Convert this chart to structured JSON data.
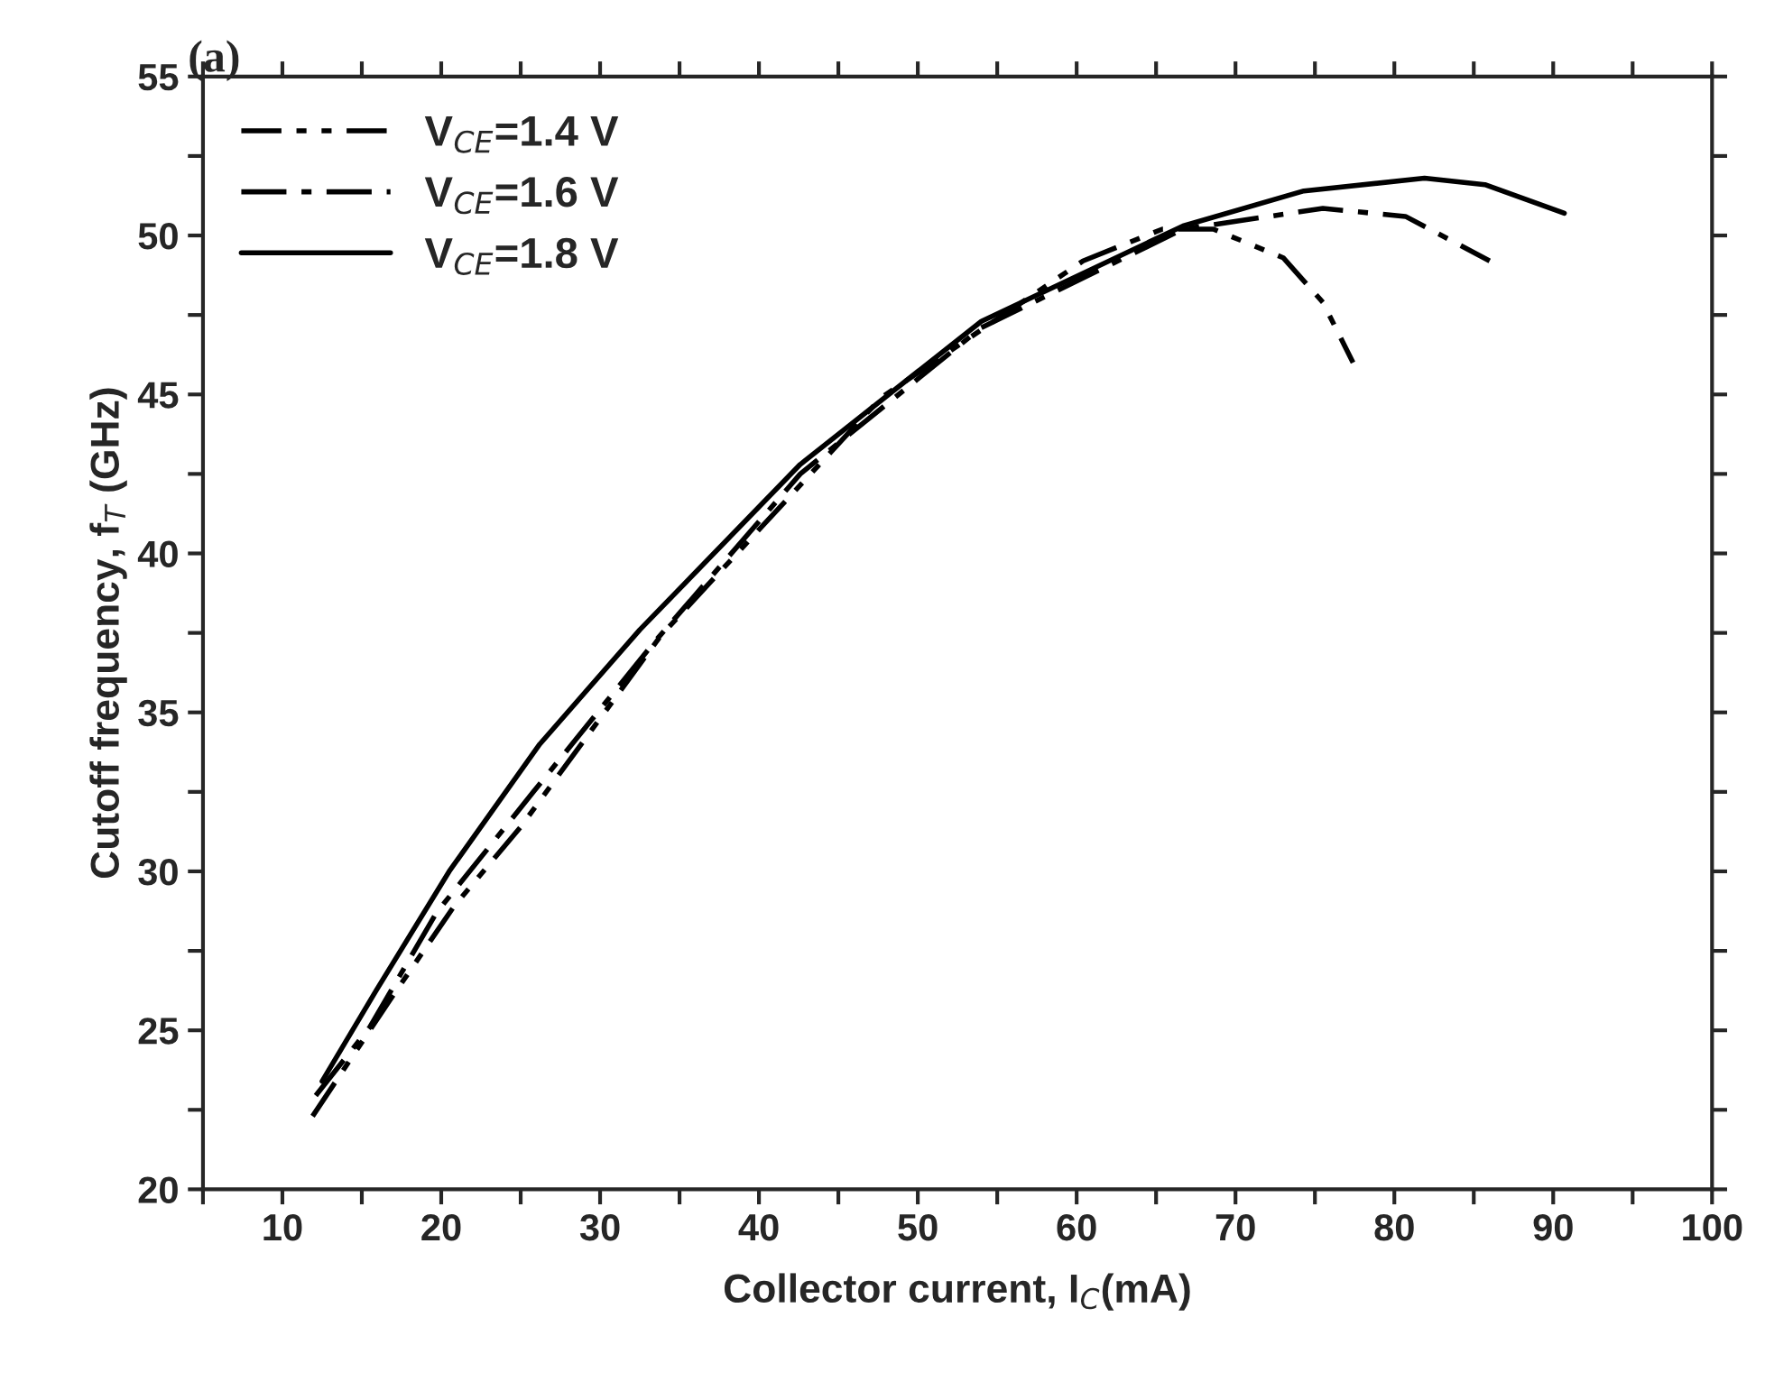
{
  "chart_data": {
    "type": "line",
    "title": "(a)",
    "xlabel": "Collector current, I$_{C}$(mA)",
    "ylabel": "Cutoff frequency, f$_{T}$ (GHz)",
    "xlim": [
      5,
      100
    ],
    "ylim": [
      20,
      55
    ],
    "xticks": [
      {
        "value": 5,
        "label": null
      },
      10,
      {
        "value": 15,
        "label": null
      },
      20,
      {
        "value": 25,
        "label": null
      },
      30,
      {
        "value": 35,
        "label": null
      },
      40,
      {
        "value": 45,
        "label": null
      },
      50,
      {
        "value": 55,
        "label": null
      },
      60,
      {
        "value": 65,
        "label": null
      },
      70,
      {
        "value": 75,
        "label": null
      },
      80,
      {
        "value": 85,
        "label": null
      },
      90,
      {
        "value": 95,
        "label": null
      },
      100
    ],
    "yticks": [
      20,
      {
        "value": 22.5,
        "label": null
      },
      25,
      {
        "value": 27.5,
        "label": null
      },
      30,
      {
        "value": 32.5,
        "label": null
      },
      35,
      {
        "value": 37.5,
        "label": null
      },
      40,
      {
        "value": 42.5,
        "label": null
      },
      45,
      {
        "value": 47.5,
        "label": null
      },
      50,
      {
        "value": 52.5,
        "label": null
      },
      55
    ],
    "grid": false,
    "legend": "top left",
    "marker": "none",
    "series": [
      {
        "name": "V$_{CE}$=1.4 V",
        "color": "#000000",
        "line_style": "dashdotdot",
        "x": [
          11.9,
          16.7,
          20.8,
          25,
          33.8,
          47.7,
          60.4,
          65.4,
          68.6,
          73,
          75.5,
          77.4
        ],
        "values": [
          22.3,
          25.9,
          28.9,
          31.4,
          37.4,
          44.9,
          49.2,
          50.2,
          50.2,
          49.3,
          47.9,
          46.0
        ]
      },
      {
        "name": "V$_{CE}$=1.6 V",
        "color": "#000000",
        "line_style": "dashdot",
        "x": [
          12.1,
          15.5,
          19.7,
          25.8,
          33.4,
          42.6,
          54,
          66.7,
          75.5,
          80.7,
          86
        ],
        "values": [
          22.95,
          25.1,
          28.7,
          32.5,
          37.2,
          42.5,
          47.1,
          50.2,
          50.85,
          50.6,
          49.2
        ]
      },
      {
        "name": "V$_{CE}$=1.8 V",
        "color": "#000000",
        "line_style": "solid",
        "x": [
          12.5,
          15.9,
          20.5,
          26.2,
          32.5,
          42.6,
          54,
          66.7,
          74.3,
          81.9,
          85.7,
          90.7
        ],
        "values": [
          23.4,
          26.25,
          30,
          34.0,
          37.6,
          42.8,
          47.3,
          50.3,
          51.4,
          51.8,
          51.6,
          50.7
        ]
      }
    ]
  }
}
